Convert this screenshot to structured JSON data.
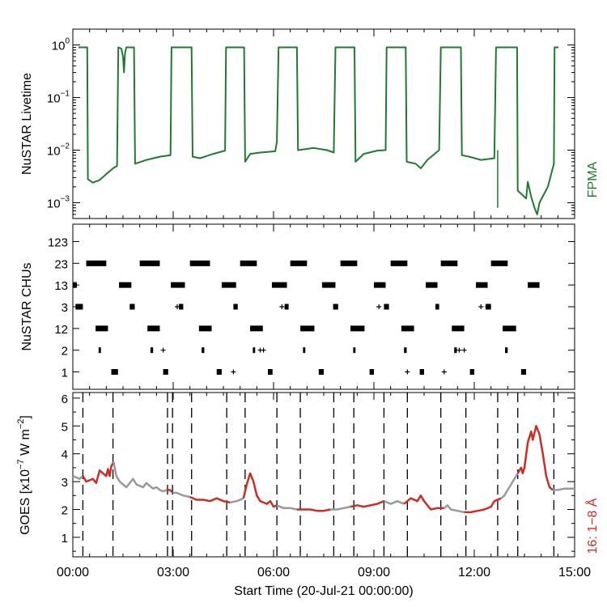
{
  "chart_data": [
    {
      "type": "line",
      "panel": "livetime",
      "ylabel": "NuSTAR Livetime",
      "yscale": "log",
      "ylim": [
        0.0005,
        2.0
      ],
      "xlim": [
        0,
        15
      ],
      "ytick_labels": [
        {
          "base": "10",
          "exp": "0",
          "value": 1
        },
        {
          "base": "10",
          "exp": "−1",
          "value": 0.1
        },
        {
          "base": "10",
          "exp": "−2",
          "value": 0.01
        },
        {
          "base": "10",
          "exp": "−3",
          "value": 0.001
        }
      ],
      "series": [
        {
          "name": "FPMA",
          "color": "#1e7b2f",
          "points": [
            [
              0.17,
              0.9
            ],
            [
              0.43,
              0.9
            ],
            [
              0.45,
              0.0028
            ],
            [
              0.6,
              0.0024
            ],
            [
              0.8,
              0.0027
            ],
            [
              1.0,
              0.0035
            ],
            [
              1.2,
              0.0045
            ],
            [
              1.32,
              0.005
            ],
            [
              1.36,
              0.9
            ],
            [
              1.45,
              0.85
            ],
            [
              1.5,
              0.6
            ],
            [
              1.53,
              0.3
            ],
            [
              1.56,
              0.7
            ],
            [
              1.6,
              0.9
            ],
            [
              1.83,
              0.9
            ],
            [
              1.86,
              0.0055
            ],
            [
              2.2,
              0.0065
            ],
            [
              2.6,
              0.0075
            ],
            [
              2.92,
              0.008
            ],
            [
              2.95,
              0.9
            ],
            [
              3.55,
              0.9
            ],
            [
              3.58,
              0.0075
            ],
            [
              3.8,
              0.007
            ],
            [
              4.2,
              0.0085
            ],
            [
              4.55,
              0.0098
            ],
            [
              4.58,
              0.9
            ],
            [
              5.12,
              0.9
            ],
            [
              5.15,
              0.006
            ],
            [
              5.3,
              0.0085
            ],
            [
              5.6,
              0.009
            ],
            [
              6.05,
              0.0095
            ],
            [
              6.1,
              0.0145
            ],
            [
              6.15,
              0.9
            ],
            [
              6.7,
              0.9
            ],
            [
              6.73,
              0.01
            ],
            [
              7.2,
              0.011
            ],
            [
              7.6,
              0.01
            ],
            [
              7.8,
              0.009
            ],
            [
              7.85,
              0.9
            ],
            [
              8.42,
              0.9
            ],
            [
              8.45,
              0.006
            ],
            [
              8.7,
              0.0085
            ],
            [
              9.1,
              0.0098
            ],
            [
              9.35,
              0.01
            ],
            [
              9.38,
              0.9
            ],
            [
              9.95,
              0.9
            ],
            [
              9.98,
              0.006
            ],
            [
              10.25,
              0.0055
            ],
            [
              10.4,
              0.0045
            ],
            [
              10.6,
              0.0065
            ],
            [
              10.95,
              0.01
            ],
            [
              11.0,
              0.9
            ],
            [
              11.6,
              0.9
            ],
            [
              11.63,
              0.008
            ],
            [
              11.85,
              0.0075
            ],
            [
              12.2,
              0.0065
            ],
            [
              12.6,
              0.007
            ],
            [
              12.65,
              0.9
            ],
            [
              13.28,
              0.9
            ],
            [
              13.3,
              0.0017
            ],
            [
              13.55,
              0.0012
            ],
            [
              13.6,
              0.0025
            ],
            [
              13.7,
              0.0013
            ],
            [
              13.8,
              0.0008
            ],
            [
              13.88,
              0.0006
            ],
            [
              13.95,
              0.001
            ],
            [
              14.2,
              0.002
            ],
            [
              14.38,
              0.0055
            ],
            [
              14.4,
              0.9
            ],
            [
              14.52,
              0.9
            ]
          ],
          "spikes": [
            [
              12.7,
              0.01,
              0.0008
            ]
          ]
        }
      ]
    },
    {
      "type": "scatter",
      "panel": "chus",
      "ylabel": "NuSTAR CHUs",
      "xlim": [
        0,
        15
      ],
      "ylim": [
        0.2,
        7.8
      ],
      "categories": [
        "1",
        "2",
        "12",
        "3",
        "13",
        "23",
        "123"
      ],
      "color": "#000000",
      "intervals": [
        {
          "level": 6,
          "ranges": [
            [
              0.4,
              1.0
            ],
            [
              2.0,
              2.6
            ],
            [
              3.5,
              4.1
            ],
            [
              5.0,
              5.5
            ],
            [
              6.5,
              7.0
            ],
            [
              8.0,
              8.5
            ],
            [
              9.5,
              10.0
            ],
            [
              11.0,
              11.5
            ],
            [
              12.5,
              13.0
            ]
          ]
        },
        {
          "level": 5,
          "ranges": [
            [
              0.0,
              0.12
            ],
            [
              1.38,
              1.75
            ],
            [
              2.93,
              3.35
            ],
            [
              4.45,
              4.88
            ],
            [
              5.95,
              6.4
            ],
            [
              7.45,
              7.85
            ],
            [
              9.0,
              9.35
            ],
            [
              10.55,
              10.9
            ],
            [
              12.05,
              12.4
            ],
            [
              13.6,
              13.95
            ]
          ]
        },
        {
          "level": 4,
          "ranges": [
            [
              0.08,
              0.3
            ],
            [
              1.7,
              1.85
            ],
            [
              3.17,
              3.3
            ],
            [
              4.8,
              4.93
            ],
            [
              6.33,
              6.45
            ],
            [
              7.78,
              7.93
            ],
            [
              9.3,
              9.45
            ],
            [
              10.84,
              10.95
            ],
            [
              12.34,
              12.5
            ]
          ]
        },
        {
          "level": 3,
          "ranges": [
            [
              0.68,
              1.05
            ],
            [
              2.23,
              2.6
            ],
            [
              3.77,
              4.15
            ],
            [
              5.3,
              5.68
            ],
            [
              6.8,
              7.22
            ],
            [
              8.3,
              8.72
            ],
            [
              9.82,
              10.2
            ],
            [
              11.33,
              11.7
            ],
            [
              12.85,
              13.25
            ]
          ]
        },
        {
          "level": 2,
          "ranges": [
            [
              0.77,
              0.84
            ],
            [
              2.32,
              2.4
            ],
            [
              3.85,
              3.93
            ],
            [
              5.38,
              5.45
            ],
            [
              6.88,
              6.95
            ],
            [
              8.38,
              8.45
            ],
            [
              9.9,
              9.98
            ],
            [
              11.4,
              11.48
            ],
            [
              12.92,
              13.0
            ]
          ]
        },
        {
          "level": 1,
          "ranges": [
            [
              1.15,
              1.35
            ],
            [
              2.7,
              2.85
            ],
            [
              4.3,
              4.45
            ],
            [
              5.83,
              5.97
            ],
            [
              7.35,
              7.5
            ],
            [
              8.87,
              9.0
            ],
            [
              10.37,
              10.5
            ],
            [
              11.87,
              12.0
            ],
            [
              13.4,
              13.55
            ]
          ]
        }
      ],
      "pluses": [
        {
          "level": 4,
          "x": [
            3.12,
            6.25,
            9.15,
            12.2,
            12.4
          ]
        },
        {
          "level": 2,
          "x": [
            2.7,
            5.6,
            5.7,
            11.55,
            11.7
          ]
        },
        {
          "level": 1,
          "x": [
            4.8,
            10.0,
            11.1
          ]
        }
      ]
    },
    {
      "type": "line",
      "panel": "goes",
      "ylabel_parts": {
        "prefix": "GOES [x10",
        "exp1": "−7",
        "mid": " W m",
        "exp2": "−2",
        "suffix": "]"
      },
      "ylim": [
        0.3,
        6.2
      ],
      "xlim": [
        0,
        15
      ],
      "yticks": [
        1,
        2,
        3,
        4,
        5,
        6
      ],
      "right_label": "16: 1−8 Å",
      "grey_color": "#999999",
      "red_color": "#cf2c24",
      "series": [
        {
          "name": "16: 1−8 Å",
          "points": [
            [
              0.0,
              3.2
            ],
            [
              0.1,
              3.15
            ],
            [
              0.2,
              3.1
            ],
            [
              0.3,
              3.2
            ],
            [
              0.4,
              3.0
            ],
            [
              0.5,
              3.05
            ],
            [
              0.6,
              3.1
            ],
            [
              0.7,
              2.95
            ],
            [
              0.8,
              3.4
            ],
            [
              0.9,
              3.3
            ],
            [
              1.0,
              3.2
            ],
            [
              1.05,
              3.45
            ],
            [
              1.1,
              3.2
            ],
            [
              1.15,
              3.55
            ],
            [
              1.22,
              3.7
            ],
            [
              1.3,
              3.2
            ],
            [
              1.4,
              3.0
            ],
            [
              1.5,
              2.9
            ],
            [
              1.6,
              2.8
            ],
            [
              1.7,
              2.95
            ],
            [
              1.8,
              3.1
            ],
            [
              1.9,
              2.9
            ],
            [
              2.0,
              2.85
            ],
            [
              2.1,
              2.8
            ],
            [
              2.2,
              2.95
            ],
            [
              2.3,
              2.85
            ],
            [
              2.4,
              2.75
            ],
            [
              2.5,
              2.8
            ],
            [
              2.6,
              2.7
            ],
            [
              2.7,
              2.65
            ],
            [
              2.8,
              2.7
            ],
            [
              2.9,
              2.7
            ],
            [
              3.0,
              2.6
            ],
            [
              3.1,
              2.6
            ],
            [
              3.3,
              2.5
            ],
            [
              3.5,
              2.45
            ],
            [
              3.7,
              2.35
            ],
            [
              3.9,
              2.35
            ],
            [
              4.1,
              2.3
            ],
            [
              4.3,
              2.4
            ],
            [
              4.5,
              2.3
            ],
            [
              4.7,
              2.25
            ],
            [
              4.9,
              2.3
            ],
            [
              5.1,
              2.4
            ],
            [
              5.2,
              2.9
            ],
            [
              5.3,
              3.3
            ],
            [
              5.4,
              3.0
            ],
            [
              5.5,
              2.5
            ],
            [
              5.6,
              2.3
            ],
            [
              5.7,
              2.25
            ],
            [
              5.8,
              2.2
            ],
            [
              5.9,
              2.3
            ],
            [
              6.0,
              2.1
            ],
            [
              6.1,
              2.15
            ],
            [
              6.3,
              2.05
            ],
            [
              6.5,
              2.05
            ],
            [
              6.7,
              2.0
            ],
            [
              6.9,
              2.0
            ],
            [
              7.1,
              2.0
            ],
            [
              7.3,
              1.95
            ],
            [
              7.5,
              1.95
            ],
            [
              7.7,
              2.0
            ],
            [
              7.9,
              2.0
            ],
            [
              8.1,
              2.05
            ],
            [
              8.3,
              2.1
            ],
            [
              8.5,
              2.15
            ],
            [
              8.7,
              2.1
            ],
            [
              8.9,
              2.15
            ],
            [
              9.1,
              2.2
            ],
            [
              9.3,
              2.3
            ],
            [
              9.5,
              2.2
            ],
            [
              9.7,
              2.3
            ],
            [
              9.9,
              2.2
            ],
            [
              10.1,
              2.4
            ],
            [
              10.3,
              2.3
            ],
            [
              10.4,
              2.5
            ],
            [
              10.5,
              2.3
            ],
            [
              10.7,
              2.0
            ],
            [
              10.9,
              2.05
            ],
            [
              11.1,
              2.05
            ],
            [
              11.2,
              2.15
            ],
            [
              11.3,
              2.0
            ],
            [
              11.5,
              1.95
            ],
            [
              11.7,
              1.9
            ],
            [
              11.9,
              1.9
            ],
            [
              12.1,
              1.95
            ],
            [
              12.3,
              2.0
            ],
            [
              12.5,
              2.1
            ],
            [
              12.6,
              2.3
            ],
            [
              12.8,
              2.4
            ],
            [
              12.9,
              2.5
            ],
            [
              13.0,
              2.7
            ],
            [
              13.1,
              2.9
            ],
            [
              13.2,
              3.1
            ],
            [
              13.3,
              3.3
            ],
            [
              13.4,
              3.5
            ],
            [
              13.45,
              3.3
            ],
            [
              13.5,
              3.5
            ],
            [
              13.6,
              4.4
            ],
            [
              13.7,
              4.8
            ],
            [
              13.75,
              4.5
            ],
            [
              13.85,
              5.0
            ],
            [
              13.95,
              4.7
            ],
            [
              14.05,
              4.0
            ],
            [
              14.15,
              3.2
            ],
            [
              14.25,
              2.8
            ],
            [
              14.35,
              2.7
            ],
            [
              14.5,
              2.7
            ],
            [
              14.7,
              2.75
            ],
            [
              14.85,
              2.75
            ],
            [
              15.0,
              2.75
            ]
          ],
          "red_ranges": [
            [
              0.3,
              1.2
            ],
            [
              2.83,
              2.98
            ],
            [
              3.55,
              4.6
            ],
            [
              5.15,
              6.1
            ],
            [
              6.8,
              7.8
            ],
            [
              8.4,
              9.3
            ],
            [
              10.0,
              11.0
            ],
            [
              11.75,
              12.8
            ],
            [
              13.3,
              14.38
            ]
          ]
        }
      ],
      "vlines": [
        0.3,
        1.2,
        2.83,
        2.98,
        3.55,
        4.6,
        5.15,
        6.1,
        6.8,
        7.8,
        8.4,
        9.3,
        10.0,
        11.0,
        11.75,
        12.7,
        13.3,
        14.38
      ]
    }
  ],
  "x_axis": {
    "label": "Start Time (20-Jul-21 00:00:00)",
    "tick_labels": [
      "00:00",
      "03:00",
      "06:00",
      "09:00",
      "12:00",
      "15:00"
    ],
    "tick_values": [
      0,
      3,
      6,
      9,
      12,
      15
    ]
  }
}
